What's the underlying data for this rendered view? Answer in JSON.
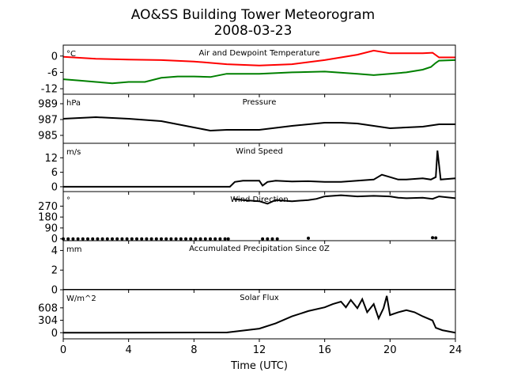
{
  "title": [
    "AO&SS Building Tower Meteorogram",
    "2008-03-23"
  ],
  "xlabel": "Time (UTC)",
  "chart_data": {
    "type": "line",
    "xlim": [
      0,
      24
    ],
    "xticks": [
      0,
      4,
      8,
      12,
      16,
      20,
      24
    ],
    "panels": [
      {
        "id": "temp",
        "title": "Air and Dewpoint Temperature",
        "unit": "°C",
        "ylim": [
          -14,
          4
        ],
        "yticks": [
          0,
          -6,
          -12
        ],
        "series": [
          {
            "color": "#ff0000",
            "x": [
              0,
              2,
              4,
              6,
              8,
              10,
              12,
              14,
              16,
              18,
              19,
              20,
              22,
              22.6,
              23,
              24
            ],
            "y": [
              -0.3,
              -1.0,
              -1.3,
              -1.5,
              -2.0,
              -3.0,
              -3.5,
              -3.0,
              -1.5,
              0.5,
              2.0,
              1.0,
              1.0,
              1.2,
              -0.5,
              -0.5
            ]
          },
          {
            "color": "#008000",
            "x": [
              0,
              1,
              2,
              3,
              4,
              5,
              6,
              7,
              8,
              9,
              10,
              12,
              14,
              16,
              18,
              19,
              20,
              21,
              22,
              22.5,
              22.8,
              23,
              24
            ],
            "y": [
              -8.5,
              -9,
              -9.5,
              -10,
              -9.5,
              -9.5,
              -8,
              -7.5,
              -7.5,
              -7.7,
              -6.5,
              -6.5,
              -6.0,
              -5.7,
              -6.5,
              -7.0,
              -6.5,
              -6.0,
              -5.0,
              -4.0,
              -2.5,
              -1.7,
              -1.5
            ]
          }
        ]
      },
      {
        "id": "pres",
        "title": "Pressure",
        "unit": "hPa",
        "ylim": [
          984,
          990.2
        ],
        "yticks": [
          989,
          987,
          985
        ],
        "series": [
          {
            "color": "#000000",
            "x": [
              0,
              2,
              4,
              6,
              8,
              9,
              10,
              12,
              14,
              16,
              17,
              18,
              19,
              20,
              22,
              23,
              24
            ],
            "y": [
              987.1,
              987.3,
              987.1,
              986.8,
              986.0,
              985.6,
              985.7,
              985.7,
              986.2,
              986.6,
              986.6,
              986.5,
              986.2,
              985.9,
              986.1,
              986.4,
              986.4
            ]
          }
        ]
      },
      {
        "id": "wspd",
        "title": "Wind Speed",
        "unit": "m/s",
        "ylim": [
          -2,
          18
        ],
        "yticks": [
          12,
          6,
          0
        ],
        "series": [
          {
            "color": "#000000",
            "x": [
              0,
              10.2,
              10.5,
              11,
              12,
              12.2,
              12.5,
              13,
              14,
              15,
              16,
              17,
              18,
              19,
              19.5,
              20,
              20.5,
              21,
              22,
              22.5,
              22.8,
              22.9,
              23.1,
              24
            ],
            "y": [
              0,
              0,
              2,
              2.5,
              2.5,
              0.5,
              2,
              2.5,
              2.2,
              2.3,
              2,
              2,
              2.5,
              3,
              5,
              4,
              3,
              3,
              3.5,
              3,
              4,
              15,
              3,
              3.5
            ]
          }
        ]
      },
      {
        "id": "wdir",
        "title": "Wind Direction",
        "unit": "°",
        "ylim": [
          -15,
          390
        ],
        "yticks": [
          270,
          180,
          90,
          0
        ],
        "series": [
          {
            "color": "#000000",
            "x": [
              10.4,
              11,
              12,
              12.5,
              13,
              14,
              15,
              15.5,
              16,
              17,
              18,
              19,
              20,
              20.5,
              21,
              22,
              22.6,
              23,
              24
            ],
            "y": [
              330,
              320,
              310,
              290,
              320,
              310,
              320,
              330,
              350,
              360,
              350,
              355,
              350,
              340,
              335,
              340,
              330,
              350,
              335
            ]
          }
        ],
        "points": [
          {
            "color": "#000000",
            "x": [
              0,
              0.3,
              0.6,
              0.9,
              1.2,
              1.5,
              1.8,
              2.1,
              2.4,
              2.7,
              3,
              3.3,
              3.6,
              3.9,
              4.2,
              4.5,
              4.8,
              5.1,
              5.4,
              5.7,
              6,
              6.3,
              6.6,
              6.9,
              7.2,
              7.5,
              7.8,
              8.1,
              8.4,
              8.7,
              9,
              9.3,
              9.6,
              9.9,
              10.1,
              12.2,
              12.5,
              12.8,
              13.1,
              15,
              22.6,
              22.8
            ],
            "y": [
              0,
              0,
              0,
              0,
              0,
              0,
              0,
              0,
              0,
              0,
              0,
              0,
              0,
              0,
              0,
              0,
              0,
              0,
              0,
              0,
              0,
              0,
              0,
              0,
              0,
              0,
              0,
              0,
              0,
              0,
              0,
              0,
              0,
              0,
              0,
              0,
              0,
              0,
              0,
              5,
              10,
              8
            ]
          }
        ]
      },
      {
        "id": "precip",
        "title": "Accumulated Precipitation Since 0Z",
        "unit": "mm",
        "ylim": [
          0,
          5
        ],
        "yticks": [
          4,
          2,
          0
        ],
        "series": [
          {
            "color": "#000000",
            "x": [
              0,
              24
            ],
            "y": [
              0,
              0
            ]
          }
        ]
      },
      {
        "id": "solar",
        "title": "Solar Flux",
        "unit": "W/m^2",
        "ylim": [
          -150,
          1050
        ],
        "yticks": [
          608,
          304,
          0
        ],
        "series": [
          {
            "color": "#000000",
            "x": [
              0,
              10,
              12,
              13,
              14,
              15,
              16,
              16.5,
              17,
              17.3,
              17.6,
              18,
              18.3,
              18.6,
              19,
              19.3,
              19.6,
              19.8,
              20,
              20.5,
              21,
              21.5,
              22,
              22.3,
              22.6,
              22.8,
              23.2,
              24
            ],
            "y": [
              0,
              5,
              100,
              230,
              400,
              530,
              620,
              700,
              760,
              620,
              800,
              600,
              820,
              500,
              700,
              350,
              600,
              900,
              430,
              500,
              550,
              500,
              400,
              350,
              300,
              120,
              60,
              0
            ]
          }
        ]
      }
    ]
  }
}
